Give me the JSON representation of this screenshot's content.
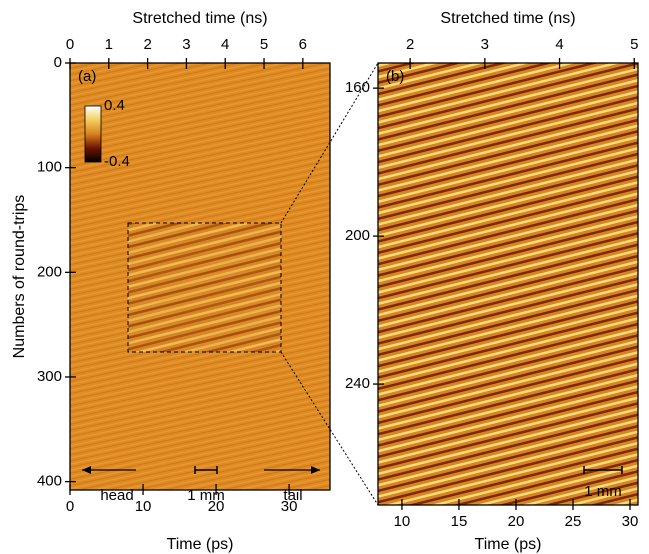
{
  "chart_data": [
    {
      "type": "heatmap",
      "panel_label": "(a)",
      "xlabel": "Time (ps)",
      "xlim": [
        0,
        35.6
      ],
      "xticks": [
        0,
        10,
        20,
        30
      ],
      "x2label": "Stretched time (ns)",
      "x2lim": [
        0,
        6.7
      ],
      "x2ticks": [
        0,
        1,
        2,
        3,
        4,
        5,
        6
      ],
      "ylabel": "Numbers of round-trips",
      "ylim": [
        0,
        408
      ],
      "yticks": [
        0,
        100,
        200,
        300,
        400
      ],
      "colorbar": {
        "lim": [
          -0.4,
          0.4
        ],
        "ticks": [
          0.4,
          -0.4
        ],
        "colors": [
          "#000000",
          "#6e1400",
          "#d98020",
          "#f3cf5c",
          "#ffffff"
        ]
      },
      "annotations": [
        "head",
        "1 mm",
        "tail"
      ]
    },
    {
      "type": "heatmap",
      "panel_label": "(b)",
      "xlabel": "Time (ps)",
      "xlim": [
        7.9,
        30.7
      ],
      "xticks": [
        10,
        15,
        20,
        25,
        30
      ],
      "x2label": "Stretched time (ns)",
      "x2lim": [
        1.57,
        5.05
      ],
      "x2ticks": [
        2,
        3,
        4,
        5
      ],
      "ylim": [
        153.2,
        272.7
      ],
      "yticks": [
        160,
        200,
        240
      ],
      "annotations": [
        "1 mm"
      ]
    }
  ]
}
